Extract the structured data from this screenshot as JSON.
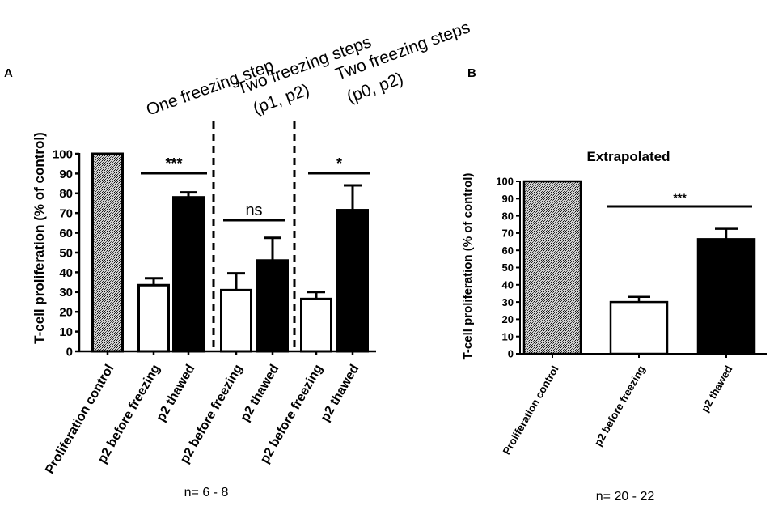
{
  "chart_data": [
    {
      "panel": "A",
      "type": "bar",
      "ylabel": "T-cell proliferation (% of control)",
      "ylim": [
        0,
        100
      ],
      "yticks": [
        0,
        10,
        20,
        30,
        40,
        50,
        60,
        70,
        80,
        90,
        100
      ],
      "groups": [
        {
          "title": "One freezing step",
          "comparison": "***"
        },
        {
          "title_lines": [
            "Two freezing steps",
            "(p1, p2)"
          ],
          "comparison": "ns"
        },
        {
          "title_lines": [
            "Two freezing steps",
            "(p0, p2)"
          ],
          "comparison": "*"
        }
      ],
      "bars": [
        {
          "label": "Proliferation control",
          "value": 100,
          "error": 0,
          "fill": "hatched"
        },
        {
          "label": "p2 before freezing",
          "value": 33.5,
          "error": 3.5,
          "fill": "white"
        },
        {
          "label": "p2 thawed",
          "value": 78,
          "error": 2.5,
          "fill": "black"
        },
        {
          "label": "p2 before freezing",
          "value": 31,
          "error": 8.5,
          "fill": "white"
        },
        {
          "label": "p2 thawed",
          "value": 46,
          "error": 11.5,
          "fill": "black"
        },
        {
          "label": "p2 before freezing",
          "value": 26.5,
          "error": 3.5,
          "fill": "white"
        },
        {
          "label": "p2 thawed",
          "value": 71.5,
          "error": 12.5,
          "fill": "black"
        }
      ],
      "footnote": "n= 6 - 8"
    },
    {
      "panel": "B",
      "type": "bar",
      "title": "Extrapolated",
      "ylabel": "T-cell proliferation (% of control)",
      "ylim": [
        0,
        100
      ],
      "yticks": [
        0,
        10,
        20,
        30,
        40,
        50,
        60,
        70,
        80,
        90,
        100
      ],
      "comparison": "***",
      "bars": [
        {
          "label": "Proliferation control",
          "value": 100,
          "error": 0,
          "fill": "hatched"
        },
        {
          "label": "p2 before freezing",
          "value": 30,
          "error": 3,
          "fill": "white"
        },
        {
          "label": "p2 thawed",
          "value": 66.5,
          "error": 6,
          "fill": "black"
        }
      ],
      "footnote": "n= 20 - 22"
    }
  ],
  "colors": {
    "axis": "#000000",
    "bar_black": "#000000",
    "bar_white": "#ffffff"
  }
}
